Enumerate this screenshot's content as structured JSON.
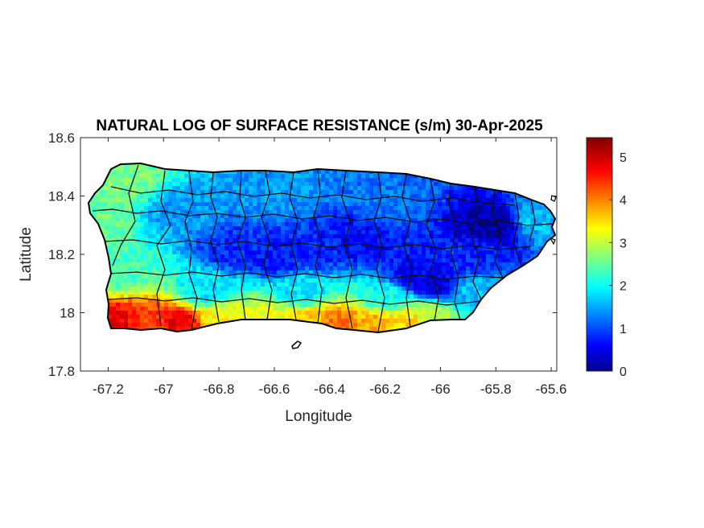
{
  "chart_data": {
    "type": "heatmap",
    "title": "NATURAL LOG OF SURFACE RESISTANCE (s/m) 30-Apr-2025",
    "xlabel": "Longitude",
    "ylabel": "Latitude",
    "xlim": [
      -67.3,
      -65.58
    ],
    "ylim": [
      17.8,
      18.6
    ],
    "xticks": [
      -67.2,
      -67,
      -66.8,
      -66.6,
      -66.4,
      -66.2,
      -66,
      -65.8,
      -65.6
    ],
    "xtick_labels": [
      "-67.2",
      "-67",
      "-66.8",
      "-66.6",
      "-66.4",
      "-66.2",
      "-66",
      "-65.8",
      "-65.6"
    ],
    "yticks": [
      17.8,
      18,
      18.2,
      18.4,
      18.6
    ],
    "ytick_labels": [
      "17.8",
      "18",
      "18.2",
      "18.4",
      "18.6"
    ],
    "colormap": "jet",
    "colorbar": {
      "range": [
        0,
        5.45
      ],
      "ticks": [
        0,
        1,
        2,
        3,
        4,
        5
      ],
      "tick_labels": [
        "0",
        "1",
        "2",
        "3",
        "4",
        "5"
      ]
    },
    "field_anchors": [
      {
        "lon": -67.2,
        "lat": 17.97,
        "value": 4.9
      },
      {
        "lon": -67.05,
        "lat": 17.96,
        "value": 4.4
      },
      {
        "lon": -66.95,
        "lat": 17.97,
        "value": 4.8
      },
      {
        "lon": -66.8,
        "lat": 17.99,
        "value": 3.4
      },
      {
        "lon": -66.65,
        "lat": 17.98,
        "value": 3.3
      },
      {
        "lon": -66.48,
        "lat": 17.98,
        "value": 3.6
      },
      {
        "lon": -66.38,
        "lat": 17.97,
        "value": 4.2
      },
      {
        "lon": -66.25,
        "lat": 17.97,
        "value": 3.8
      },
      {
        "lon": -66.12,
        "lat": 17.98,
        "value": 3.6
      },
      {
        "lon": -66.05,
        "lat": 18.0,
        "value": 3.0
      },
      {
        "lon": -67.24,
        "lat": 18.33,
        "value": 2.6
      },
      {
        "lon": -67.15,
        "lat": 18.46,
        "value": 2.7
      },
      {
        "lon": -67.17,
        "lat": 18.15,
        "value": 2.4
      },
      {
        "lon": -66.95,
        "lat": 18.35,
        "value": 1.5
      },
      {
        "lon": -66.75,
        "lat": 18.22,
        "value": 0.9
      },
      {
        "lon": -66.6,
        "lat": 18.2,
        "value": 0.8
      },
      {
        "lon": -66.45,
        "lat": 18.22,
        "value": 0.9
      },
      {
        "lon": -66.3,
        "lat": 18.25,
        "value": 0.7
      },
      {
        "lon": -66.1,
        "lat": 18.13,
        "value": 0.6
      },
      {
        "lon": -66.02,
        "lat": 18.1,
        "value": 0.5
      },
      {
        "lon": -65.82,
        "lat": 18.3,
        "value": 0.2
      },
      {
        "lon": -65.88,
        "lat": 18.2,
        "value": 0.9
      },
      {
        "lon": -65.65,
        "lat": 18.32,
        "value": 1.7
      },
      {
        "lon": -66.2,
        "lat": 18.4,
        "value": 1.3
      },
      {
        "lon": -66.6,
        "lat": 18.42,
        "value": 1.5
      },
      {
        "lon": -66.85,
        "lat": 18.08,
        "value": 1.9
      },
      {
        "lon": -66.5,
        "lat": 18.08,
        "value": 1.9
      },
      {
        "lon": -66.2,
        "lat": 18.06,
        "value": 2.1
      },
      {
        "lon": -65.9,
        "lat": 18.08,
        "value": 1.7
      }
    ]
  }
}
